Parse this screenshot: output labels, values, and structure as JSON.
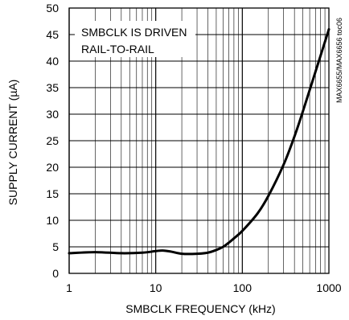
{
  "chart_data": {
    "type": "line",
    "title": "",
    "xlabel": "SMBCLK FREQUENCY (kHz)",
    "ylabel": "SUPPLY CURRENT (µA)",
    "xscale": "log",
    "xlim": [
      1,
      1000
    ],
    "ylim": [
      0,
      50
    ],
    "xticks": [
      1,
      10,
      100,
      1000
    ],
    "xtick_labels": [
      "1",
      "10",
      "100",
      "1000"
    ],
    "yticks": [
      0,
      5,
      10,
      15,
      20,
      25,
      30,
      35,
      40,
      45,
      50
    ],
    "ytick_labels": [
      "0",
      "5",
      "10",
      "15",
      "20",
      "25",
      "30",
      "35",
      "40",
      "45",
      "50"
    ],
    "grid": true,
    "annotation": [
      "SMBCLK IS DRIVEN",
      "RAIL-TO-RAIL"
    ],
    "side_code": "MAX6655/MAX6656 toc06",
    "series": [
      {
        "x": [
          1,
          2,
          4,
          7,
          10,
          12,
          15,
          20,
          30,
          40,
          50,
          60,
          70,
          80,
          100,
          150,
          200,
          300,
          400,
          500,
          700,
          1000
        ],
        "y": [
          3.8,
          4.0,
          3.8,
          3.9,
          4.2,
          4.3,
          4.1,
          3.7,
          3.7,
          3.9,
          4.4,
          5.0,
          5.8,
          6.6,
          8.0,
          11.3,
          14.6,
          20.5,
          25.8,
          30.5,
          38.0,
          46.0
        ]
      }
    ]
  }
}
